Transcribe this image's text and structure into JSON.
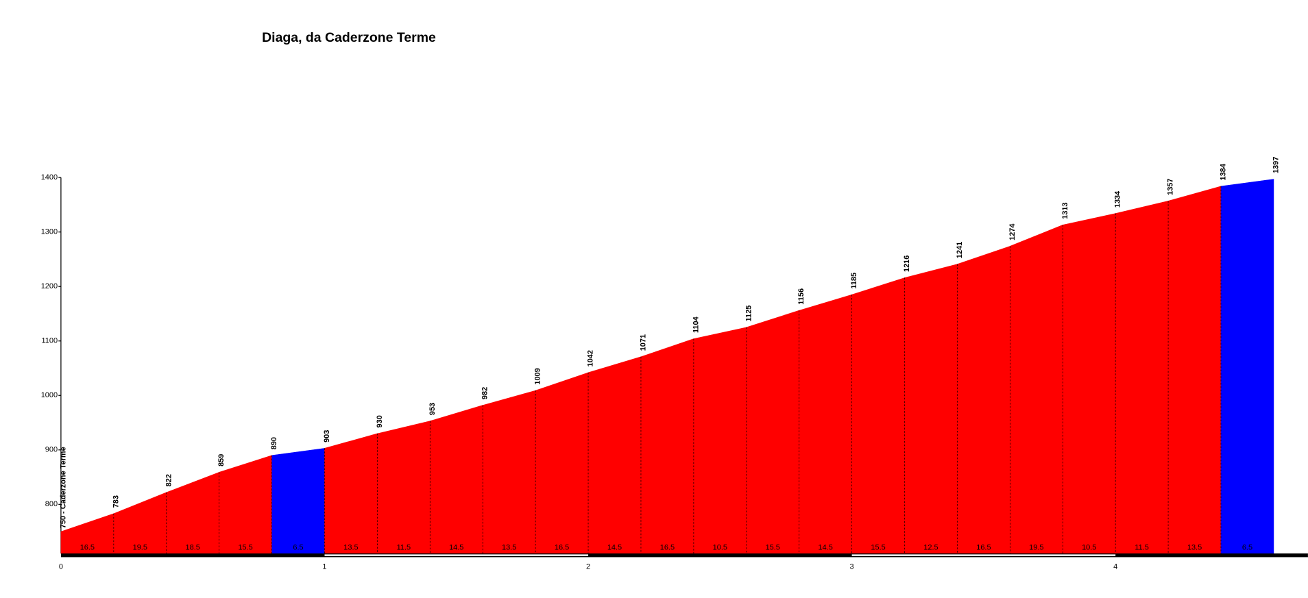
{
  "chart_data": {
    "type": "area",
    "title": "Diaga, da Caderzone Terme",
    "x": [
      0,
      0.2,
      0.4,
      0.6,
      0.8,
      1,
      1.2,
      1.4,
      1.6,
      1.8,
      2,
      2.2,
      2.4,
      2.6,
      2.8,
      3,
      3.2,
      3.4,
      3.6,
      3.8,
      4,
      4.2,
      4.4,
      4.6
    ],
    "values": [
      750,
      783,
      822,
      859,
      890,
      903,
      930,
      953,
      982,
      1009,
      1042,
      1071,
      1104,
      1125,
      1156,
      1185,
      1216,
      1241,
      1274,
      1313,
      1334,
      1357,
      1384,
      1397
    ],
    "value_labels": [
      "750 - Caderzone Terme",
      "783",
      "822",
      "859",
      "890",
      "903",
      "930",
      "953",
      "982",
      "1009",
      "1042",
      "1071",
      "1104",
      "1125",
      "1156",
      "1185",
      "1216",
      "1241",
      "1274",
      "1313",
      "1334",
      "1357",
      "1384",
      "1397"
    ],
    "gradients": [
      16.5,
      19.5,
      18.5,
      15.5,
      6.5,
      13.5,
      11.5,
      14.5,
      13.5,
      16.5,
      14.5,
      16.5,
      10.5,
      15.5,
      14.5,
      15.5,
      12.5,
      16.5,
      19.5,
      10.5,
      11.5,
      13.5,
      6.5
    ],
    "segment_colors": [
      "#ff0000",
      "#ff0000",
      "#ff0000",
      "#ff0000",
      "#0000ff",
      "#ff0000",
      "#ff0000",
      "#ff0000",
      "#ff0000",
      "#ff0000",
      "#ff0000",
      "#ff0000",
      "#ff0000",
      "#ff0000",
      "#ff0000",
      "#ff0000",
      "#ff0000",
      "#ff0000",
      "#ff0000",
      "#ff0000",
      "#ff0000",
      "#ff0000",
      "#0000ff"
    ],
    "xlim": [
      0,
      4.73
    ],
    "xticks": [
      0,
      1,
      2,
      3,
      4
    ],
    "ylim": [
      710,
      1400
    ],
    "yticks": [
      800,
      900,
      1000,
      1100,
      1200,
      1300,
      1400
    ]
  }
}
